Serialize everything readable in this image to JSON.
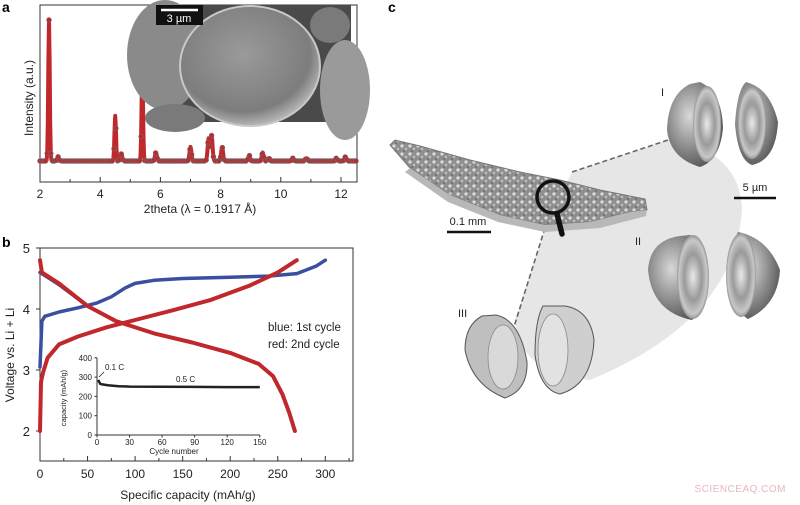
{
  "panels": {
    "a": {
      "label": "a"
    },
    "b": {
      "label": "b"
    },
    "c": {
      "label": "c"
    }
  },
  "chart_data": [
    {
      "id": "a",
      "type": "scatter",
      "title": "",
      "xlabel": "2theta (λ = 0.1917 Å)",
      "ylabel": "Intensity (a.u.)",
      "xlim": [
        2,
        12.5
      ],
      "xticks": [
        2,
        4,
        6,
        8,
        10,
        12
      ],
      "color": "#c0282c",
      "peaks": [
        {
          "x": 2.3,
          "height": 1.0
        },
        {
          "x": 2.6,
          "height": 0.03
        },
        {
          "x": 4.5,
          "height": 0.32
        },
        {
          "x": 4.7,
          "height": 0.05
        },
        {
          "x": 5.4,
          "height": 0.64
        },
        {
          "x": 5.85,
          "height": 0.06
        },
        {
          "x": 7.0,
          "height": 0.1
        },
        {
          "x": 7.6,
          "height": 0.16
        },
        {
          "x": 7.7,
          "height": 0.18
        },
        {
          "x": 8.05,
          "height": 0.1
        },
        {
          "x": 8.95,
          "height": 0.04
        },
        {
          "x": 9.4,
          "height": 0.06
        },
        {
          "x": 9.6,
          "height": 0.02
        },
        {
          "x": 10.4,
          "height": 0.02
        },
        {
          "x": 10.85,
          "height": 0.02
        },
        {
          "x": 11.85,
          "height": 0.02
        },
        {
          "x": 12.15,
          "height": 0.03
        }
      ],
      "inset": {
        "type": "SEM image",
        "scale_bar": "3 µm"
      }
    },
    {
      "id": "b",
      "type": "line",
      "title": "",
      "xlabel": "Specific capacity (mAh/g)",
      "ylabel": "Voltage vs. Li + Li",
      "xlim": [
        0,
        330
      ],
      "ylim": [
        1.5,
        5
      ],
      "xticks": [
        0,
        50,
        100,
        150,
        200,
        250,
        300
      ],
      "yticks": [
        2,
        3,
        4,
        5
      ],
      "legend_text": [
        "blue: 1st cycle",
        "red: 2nd cycle"
      ],
      "series": [
        {
          "name": "1st cycle charge",
          "color": "#3a4fa0",
          "x": [
            0,
            2,
            5,
            20,
            40,
            60,
            75,
            90,
            100,
            120,
            150,
            200,
            240,
            270,
            290,
            300
          ],
          "y": [
            3.05,
            3.8,
            3.88,
            3.95,
            4.02,
            4.1,
            4.2,
            4.35,
            4.42,
            4.47,
            4.5,
            4.52,
            4.54,
            4.58,
            4.7,
            4.8
          ]
        },
        {
          "name": "1st cycle discharge",
          "color": "#3a4fa0",
          "x": [
            0,
            20,
            50,
            80,
            120,
            160,
            200,
            230,
            245,
            255,
            262,
            268
          ],
          "y": [
            4.6,
            4.4,
            4.05,
            3.8,
            3.6,
            3.45,
            3.28,
            3.1,
            2.9,
            2.6,
            2.3,
            2.0
          ]
        },
        {
          "name": "2nd cycle charge",
          "color": "#c0282c",
          "x": [
            0,
            1,
            3,
            8,
            20,
            40,
            70,
            100,
            140,
            180,
            220,
            250,
            270
          ],
          "y": [
            2.0,
            2.8,
            2.95,
            3.2,
            3.42,
            3.55,
            3.7,
            3.82,
            3.98,
            4.15,
            4.38,
            4.6,
            4.8
          ]
        },
        {
          "name": "2nd cycle discharge",
          "color": "#c0282c",
          "x": [
            0,
            2,
            20,
            50,
            80,
            120,
            160,
            200,
            230,
            245,
            255,
            262,
            268
          ],
          "y": [
            4.8,
            4.6,
            4.42,
            4.05,
            3.8,
            3.6,
            3.45,
            3.28,
            3.1,
            2.9,
            2.6,
            2.3,
            2.0
          ]
        }
      ],
      "inset": {
        "type": "scatter",
        "xlabel": "Cycle number",
        "ylabel": "capacity (mAh/g)",
        "xlim": [
          0,
          150
        ],
        "ylim": [
          0,
          400
        ],
        "xticks": [
          0,
          30,
          60,
          90,
          120,
          150
        ],
        "yticks": [
          0,
          100,
          200,
          300,
          400
        ],
        "annotations": [
          "0.1 C",
          "0.5 C"
        ],
        "series": [
          {
            "name": "capacity",
            "color": "#222222",
            "x": [
              1,
              2,
              3,
              5,
              10,
              20,
              30,
              60,
              90,
              120,
              150
            ],
            "y": [
              285,
              275,
              265,
              262,
              258,
              253,
              251,
              250,
              249,
              248,
              248
            ]
          }
        ]
      }
    }
  ],
  "panel_c": {
    "labels": [
      "I",
      "II",
      "III"
    ],
    "scale_bar_large": "0.1 mm",
    "scale_bar_small": "5 µm",
    "magnifier": "magnifying-glass"
  },
  "watermark": "SCIENCEAQ.COM"
}
